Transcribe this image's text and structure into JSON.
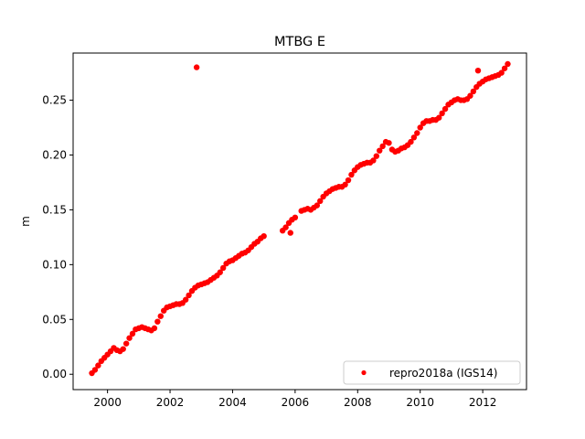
{
  "chart_data": {
    "type": "scatter",
    "title": "MTBG E",
    "xlabel": "",
    "ylabel": "m",
    "xlim": [
      1998.9,
      2013.4
    ],
    "ylim": [
      -0.014,
      0.293
    ],
    "xticks": [
      2000,
      2002,
      2004,
      2006,
      2008,
      2010,
      2012
    ],
    "xtick_labels": [
      "2000",
      "2002",
      "2004",
      "2006",
      "2008",
      "2010",
      "2012"
    ],
    "yticks": [
      0.0,
      0.05,
      0.1,
      0.15,
      0.2,
      0.25
    ],
    "ytick_labels": [
      "0.00",
      "0.05",
      "0.10",
      "0.15",
      "0.20",
      "0.25"
    ],
    "grid": false,
    "legend_position": "lower-right",
    "series": [
      {
        "name": "repro2018a (IGS14)",
        "color": "#ff0000",
        "marker": "circle",
        "points": [
          [
            1999.5,
            0.001
          ],
          [
            1999.6,
            0.004
          ],
          [
            1999.7,
            0.008
          ],
          [
            1999.8,
            0.012
          ],
          [
            1999.9,
            0.015
          ],
          [
            2000.0,
            0.018
          ],
          [
            2000.1,
            0.021
          ],
          [
            2000.2,
            0.024
          ],
          [
            2000.3,
            0.022
          ],
          [
            2000.4,
            0.021
          ],
          [
            2000.5,
            0.023
          ],
          [
            2000.6,
            0.028
          ],
          [
            2000.7,
            0.033
          ],
          [
            2000.8,
            0.037
          ],
          [
            2000.9,
            0.041
          ],
          [
            2001.0,
            0.042
          ],
          [
            2001.1,
            0.043
          ],
          [
            2001.2,
            0.042
          ],
          [
            2001.3,
            0.041
          ],
          [
            2001.4,
            0.04
          ],
          [
            2001.5,
            0.042
          ],
          [
            2001.6,
            0.048
          ],
          [
            2001.7,
            0.053
          ],
          [
            2001.8,
            0.058
          ],
          [
            2001.9,
            0.061
          ],
          [
            2002.0,
            0.062
          ],
          [
            2002.1,
            0.063
          ],
          [
            2002.2,
            0.064
          ],
          [
            2002.3,
            0.064
          ],
          [
            2002.4,
            0.065
          ],
          [
            2002.5,
            0.068
          ],
          [
            2002.6,
            0.072
          ],
          [
            2002.7,
            0.076
          ],
          [
            2002.8,
            0.079
          ],
          [
            2002.9,
            0.081
          ],
          [
            2003.0,
            0.082
          ],
          [
            2003.1,
            0.083
          ],
          [
            2003.2,
            0.084
          ],
          [
            2003.3,
            0.086
          ],
          [
            2003.4,
            0.088
          ],
          [
            2003.5,
            0.09
          ],
          [
            2003.6,
            0.093
          ],
          [
            2003.7,
            0.097
          ],
          [
            2003.8,
            0.101
          ],
          [
            2003.9,
            0.103
          ],
          [
            2004.0,
            0.104
          ],
          [
            2004.1,
            0.106
          ],
          [
            2004.2,
            0.108
          ],
          [
            2004.3,
            0.11
          ],
          [
            2004.4,
            0.111
          ],
          [
            2004.5,
            0.113
          ],
          [
            2004.6,
            0.116
          ],
          [
            2004.7,
            0.119
          ],
          [
            2004.8,
            0.121
          ],
          [
            2004.9,
            0.124
          ],
          [
            2005.0,
            0.126
          ],
          [
            2005.6,
            0.131
          ],
          [
            2005.7,
            0.134
          ],
          [
            2005.8,
            0.138
          ],
          [
            2005.9,
            0.141
          ],
          [
            2006.0,
            0.143
          ],
          [
            2005.85,
            0.129
          ],
          [
            2006.2,
            0.149
          ],
          [
            2006.3,
            0.15
          ],
          [
            2006.4,
            0.151
          ],
          [
            2006.5,
            0.15
          ],
          [
            2006.6,
            0.152
          ],
          [
            2006.7,
            0.154
          ],
          [
            2006.8,
            0.158
          ],
          [
            2006.9,
            0.162
          ],
          [
            2007.0,
            0.165
          ],
          [
            2007.1,
            0.167
          ],
          [
            2007.2,
            0.169
          ],
          [
            2007.3,
            0.17
          ],
          [
            2007.4,
            0.171
          ],
          [
            2007.5,
            0.171
          ],
          [
            2007.6,
            0.173
          ],
          [
            2007.7,
            0.177
          ],
          [
            2007.8,
            0.182
          ],
          [
            2007.9,
            0.186
          ],
          [
            2008.0,
            0.189
          ],
          [
            2008.1,
            0.191
          ],
          [
            2008.2,
            0.192
          ],
          [
            2008.3,
            0.193
          ],
          [
            2008.4,
            0.193
          ],
          [
            2008.5,
            0.195
          ],
          [
            2008.6,
            0.199
          ],
          [
            2008.7,
            0.204
          ],
          [
            2008.8,
            0.208
          ],
          [
            2008.9,
            0.212
          ],
          [
            2009.0,
            0.211
          ],
          [
            2009.1,
            0.205
          ],
          [
            2009.2,
            0.203
          ],
          [
            2009.3,
            0.204
          ],
          [
            2009.4,
            0.206
          ],
          [
            2009.5,
            0.207
          ],
          [
            2009.6,
            0.209
          ],
          [
            2009.7,
            0.212
          ],
          [
            2009.8,
            0.216
          ],
          [
            2009.9,
            0.22
          ],
          [
            2010.0,
            0.225
          ],
          [
            2010.1,
            0.229
          ],
          [
            2010.2,
            0.231
          ],
          [
            2010.3,
            0.231
          ],
          [
            2010.4,
            0.232
          ],
          [
            2010.5,
            0.232
          ],
          [
            2010.6,
            0.234
          ],
          [
            2010.7,
            0.238
          ],
          [
            2010.8,
            0.242
          ],
          [
            2010.9,
            0.246
          ],
          [
            2011.0,
            0.248
          ],
          [
            2011.1,
            0.25
          ],
          [
            2011.2,
            0.251
          ],
          [
            2011.3,
            0.25
          ],
          [
            2011.4,
            0.25
          ],
          [
            2011.5,
            0.251
          ],
          [
            2011.6,
            0.254
          ],
          [
            2011.7,
            0.258
          ],
          [
            2011.8,
            0.262
          ],
          [
            2011.9,
            0.265
          ],
          [
            2012.0,
            0.267
          ],
          [
            2012.1,
            0.269
          ],
          [
            2012.2,
            0.27
          ],
          [
            2012.3,
            0.271
          ],
          [
            2012.4,
            0.272
          ],
          [
            2012.5,
            0.273
          ],
          [
            2012.6,
            0.275
          ],
          [
            2012.7,
            0.279
          ],
          [
            2012.8,
            0.283
          ],
          [
            2002.85,
            0.28
          ],
          [
            2011.85,
            0.277
          ]
        ]
      }
    ]
  }
}
